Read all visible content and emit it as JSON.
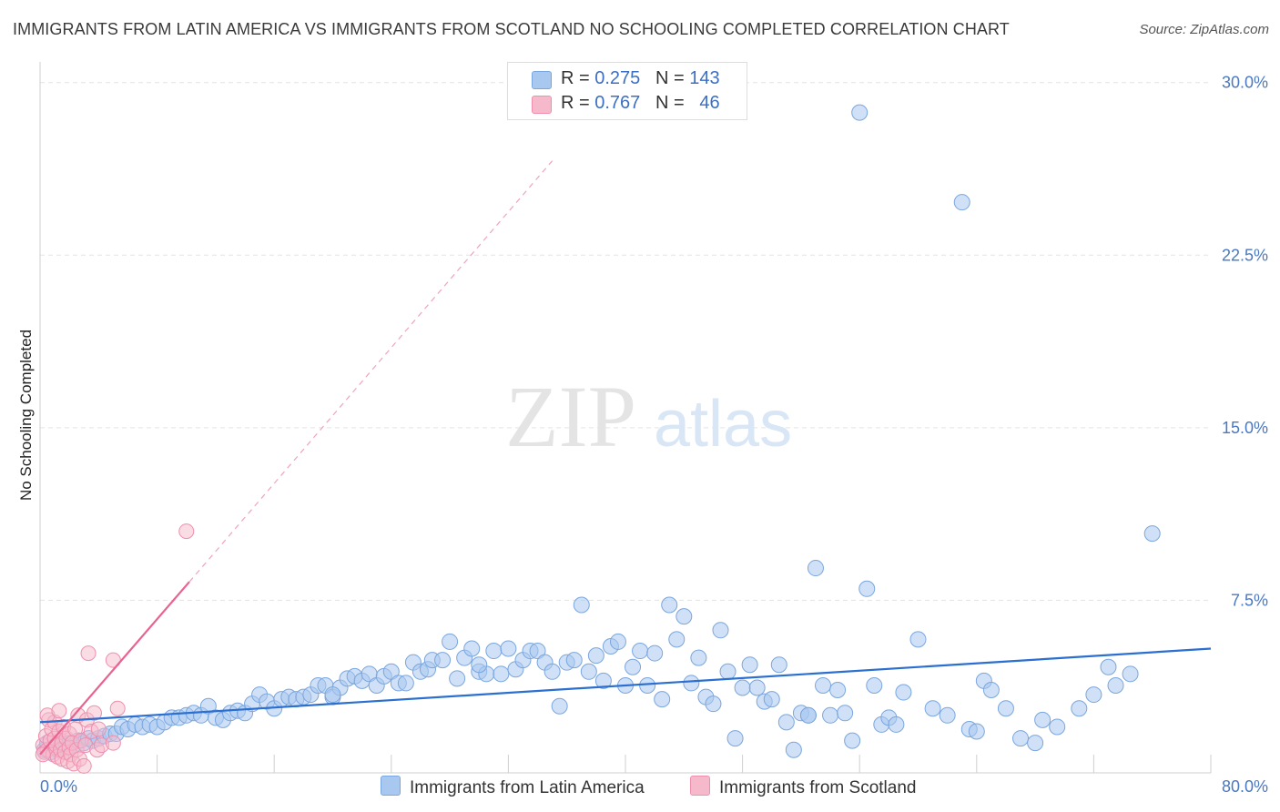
{
  "title": "IMMIGRANTS FROM LATIN AMERICA VS IMMIGRANTS FROM SCOTLAND NO SCHOOLING COMPLETED CORRELATION CHART",
  "source": "Source: ZipAtlas.com",
  "watermark": {
    "zip": "ZIP",
    "atlas": "atlas"
  },
  "legend": {
    "r_label": "R =",
    "n_label": "N =",
    "rows": [
      {
        "r": "0.275",
        "n": "143"
      },
      {
        "r": "0.767",
        "n": "46"
      }
    ]
  },
  "colors": {
    "blue_fill": "#a9c8f0",
    "blue_stroke": "#7aa6de",
    "blue_line": "#2b6fd0",
    "pink_fill": "#f6b9cb",
    "pink_stroke": "#ee8fae",
    "pink_line": "#e8638f",
    "tick_text": "#4a78c2",
    "grid": "#e3e3e3"
  },
  "chart_data": {
    "type": "scatter",
    "title": "IMMIGRANTS FROM LATIN AMERICA VS IMMIGRANTS FROM SCOTLAND NO SCHOOLING COMPLETED CORRELATION CHART",
    "xlabel": "",
    "ylabel": "No Schooling Completed",
    "xlim": [
      0,
      80
    ],
    "ylim": [
      0,
      30.9
    ],
    "x_tick_labels": [
      "0.0%",
      "80.0%"
    ],
    "y_ticks": [
      7.5,
      15.0,
      22.5,
      30.0
    ],
    "y_tick_labels": [
      "7.5%",
      "15.0%",
      "22.5%",
      "30.0%"
    ],
    "grid": true,
    "legend_position": "bottom",
    "series": [
      {
        "name": "Immigrants from Latin America",
        "color": "#a9c8f0",
        "trendline": {
          "x": [
            0,
            80
          ],
          "y": [
            2.2,
            5.4
          ]
        },
        "points": [
          [
            0.3,
            1.0
          ],
          [
            0.5,
            1.3
          ],
          [
            0.7,
            0.9
          ],
          [
            1.0,
            1.1
          ],
          [
            1.2,
            1.0
          ],
          [
            1.5,
            1.2
          ],
          [
            1.8,
            1.1
          ],
          [
            2.0,
            1.3
          ],
          [
            2.3,
            1.2
          ],
          [
            2.6,
            1.4
          ],
          [
            3.0,
            1.3
          ],
          [
            3.3,
            1.5
          ],
          [
            3.6,
            1.4
          ],
          [
            4.0,
            1.5
          ],
          [
            4.4,
            1.6
          ],
          [
            4.8,
            1.7
          ],
          [
            5.2,
            1.7
          ],
          [
            5.6,
            2.0
          ],
          [
            6.0,
            1.9
          ],
          [
            6.5,
            2.1
          ],
          [
            7.0,
            2.0
          ],
          [
            7.5,
            2.1
          ],
          [
            8.0,
            2.0
          ],
          [
            8.5,
            2.2
          ],
          [
            9.0,
            2.4
          ],
          [
            9.5,
            2.4
          ],
          [
            10.0,
            2.5
          ],
          [
            10.5,
            2.6
          ],
          [
            11.0,
            2.5
          ],
          [
            11.5,
            2.9
          ],
          [
            12.0,
            2.4
          ],
          [
            12.5,
            2.3
          ],
          [
            13.0,
            2.6
          ],
          [
            13.5,
            2.7
          ],
          [
            14.0,
            2.6
          ],
          [
            14.5,
            3.0
          ],
          [
            15.0,
            3.4
          ],
          [
            15.5,
            3.1
          ],
          [
            16.0,
            2.8
          ],
          [
            16.5,
            3.2
          ],
          [
            17.0,
            3.3
          ],
          [
            17.5,
            3.2
          ],
          [
            18.0,
            3.3
          ],
          [
            18.5,
            3.4
          ],
          [
            19.0,
            3.8
          ],
          [
            19.5,
            3.8
          ],
          [
            20.0,
            3.3
          ],
          [
            20.5,
            3.7
          ],
          [
            21.0,
            4.1
          ],
          [
            21.5,
            4.2
          ],
          [
            22.0,
            4.0
          ],
          [
            22.5,
            4.3
          ],
          [
            23.0,
            3.8
          ],
          [
            23.5,
            4.2
          ],
          [
            24.0,
            4.4
          ],
          [
            24.5,
            3.9
          ],
          [
            25.0,
            3.9
          ],
          [
            25.5,
            4.8
          ],
          [
            26.0,
            4.4
          ],
          [
            26.5,
            4.5
          ],
          [
            26.8,
            4.9
          ],
          [
            27.5,
            4.9
          ],
          [
            28.0,
            5.7
          ],
          [
            28.5,
            4.1
          ],
          [
            29.0,
            5.0
          ],
          [
            29.5,
            5.4
          ],
          [
            30.0,
            4.4
          ],
          [
            30.5,
            4.3
          ],
          [
            31.0,
            5.3
          ],
          [
            31.5,
            4.3
          ],
          [
            32.0,
            5.4
          ],
          [
            32.5,
            4.5
          ],
          [
            33.0,
            4.9
          ],
          [
            33.5,
            5.3
          ],
          [
            34.0,
            5.3
          ],
          [
            34.5,
            4.8
          ],
          [
            35.0,
            4.4
          ],
          [
            35.5,
            2.9
          ],
          [
            36.0,
            4.8
          ],
          [
            36.5,
            4.9
          ],
          [
            37.0,
            7.3
          ],
          [
            37.5,
            4.4
          ],
          [
            38.0,
            5.1
          ],
          [
            38.5,
            4.0
          ],
          [
            39.0,
            5.5
          ],
          [
            39.5,
            5.7
          ],
          [
            40.0,
            3.8
          ],
          [
            40.5,
            4.6
          ],
          [
            41.0,
            5.3
          ],
          [
            41.5,
            3.8
          ],
          [
            42.0,
            5.2
          ],
          [
            42.5,
            3.2
          ],
          [
            43.0,
            7.3
          ],
          [
            43.5,
            5.8
          ],
          [
            44.0,
            6.8
          ],
          [
            44.5,
            3.9
          ],
          [
            45.0,
            5.0
          ],
          [
            45.5,
            3.3
          ],
          [
            46.0,
            3.0
          ],
          [
            46.5,
            6.2
          ],
          [
            47.0,
            4.4
          ],
          [
            47.5,
            1.5
          ],
          [
            48.0,
            3.7
          ],
          [
            48.5,
            4.7
          ],
          [
            49.0,
            3.7
          ],
          [
            49.5,
            3.1
          ],
          [
            50.0,
            3.2
          ],
          [
            50.5,
            4.7
          ],
          [
            51.0,
            2.2
          ],
          [
            51.5,
            1.0
          ],
          [
            52.0,
            2.6
          ],
          [
            52.5,
            2.5
          ],
          [
            53.0,
            8.9
          ],
          [
            53.5,
            3.8
          ],
          [
            54.0,
            2.5
          ],
          [
            54.5,
            3.6
          ],
          [
            55.0,
            2.6
          ],
          [
            55.5,
            1.4
          ],
          [
            56.0,
            28.7
          ],
          [
            56.5,
            8.0
          ],
          [
            57.0,
            3.8
          ],
          [
            57.5,
            2.1
          ],
          [
            58.0,
            2.4
          ],
          [
            58.5,
            2.1
          ],
          [
            59.0,
            3.5
          ],
          [
            60.0,
            5.8
          ],
          [
            61.0,
            2.8
          ],
          [
            62.0,
            2.5
          ],
          [
            63.0,
            24.8
          ],
          [
            63.5,
            1.9
          ],
          [
            64.0,
            1.8
          ],
          [
            64.5,
            4.0
          ],
          [
            65.0,
            3.6
          ],
          [
            66.0,
            2.8
          ],
          [
            67.0,
            1.5
          ],
          [
            68.0,
            1.3
          ],
          [
            68.5,
            2.3
          ],
          [
            69.5,
            2.0
          ],
          [
            71.0,
            2.8
          ],
          [
            72.0,
            3.4
          ],
          [
            73.0,
            4.6
          ],
          [
            73.5,
            3.8
          ],
          [
            74.5,
            4.3
          ],
          [
            76.0,
            10.4
          ],
          [
            52.5,
            2.5
          ],
          [
            30.0,
            4.7
          ],
          [
            20.0,
            3.4
          ]
        ]
      },
      {
        "name": "Immigrants from Scotland",
        "color": "#f6b9cb",
        "trendline": {
          "x": [
            0,
            10.2
          ],
          "y": [
            0.8,
            8.3
          ],
          "dashed_x": [
            10.2,
            35
          ],
          "dashed_y": [
            8.3,
            26.6
          ]
        },
        "points": [
          [
            0.2,
            1.2
          ],
          [
            0.3,
            0.9
          ],
          [
            0.4,
            1.6
          ],
          [
            0.5,
            1.0
          ],
          [
            0.6,
            2.3
          ],
          [
            0.7,
            1.4
          ],
          [
            0.8,
            1.9
          ],
          [
            0.9,
            0.8
          ],
          [
            1.0,
            1.5
          ],
          [
            1.0,
            2.2
          ],
          [
            1.1,
            1.2
          ],
          [
            1.2,
            0.7
          ],
          [
            1.3,
            1.8
          ],
          [
            1.4,
            1.0
          ],
          [
            1.5,
            1.3
          ],
          [
            1.5,
            0.6
          ],
          [
            1.6,
            2.0
          ],
          [
            1.7,
            0.9
          ],
          [
            1.8,
            1.5
          ],
          [
            1.9,
            0.5
          ],
          [
            2.0,
            1.1
          ],
          [
            2.0,
            1.7
          ],
          [
            2.1,
            0.8
          ],
          [
            2.2,
            1.3
          ],
          [
            2.3,
            0.4
          ],
          [
            2.4,
            1.9
          ],
          [
            2.5,
            1.0
          ],
          [
            2.6,
            2.5
          ],
          [
            2.7,
            0.6
          ],
          [
            2.8,
            1.4
          ],
          [
            3.0,
            0.3
          ],
          [
            3.1,
            1.2
          ],
          [
            3.2,
            2.3
          ],
          [
            3.3,
            5.2
          ],
          [
            3.5,
            1.8
          ],
          [
            3.7,
            2.6
          ],
          [
            3.9,
            1.0
          ],
          [
            4.0,
            1.9
          ],
          [
            4.2,
            1.2
          ],
          [
            0.2,
            0.8
          ],
          [
            5.0,
            4.9
          ],
          [
            5.0,
            1.3
          ],
          [
            5.3,
            2.8
          ],
          [
            10.0,
            10.5
          ],
          [
            0.5,
            2.5
          ],
          [
            1.3,
            2.7
          ]
        ]
      }
    ]
  },
  "bottom_legend": [
    "Immigrants from Latin America",
    "Immigrants from Scotland"
  ]
}
